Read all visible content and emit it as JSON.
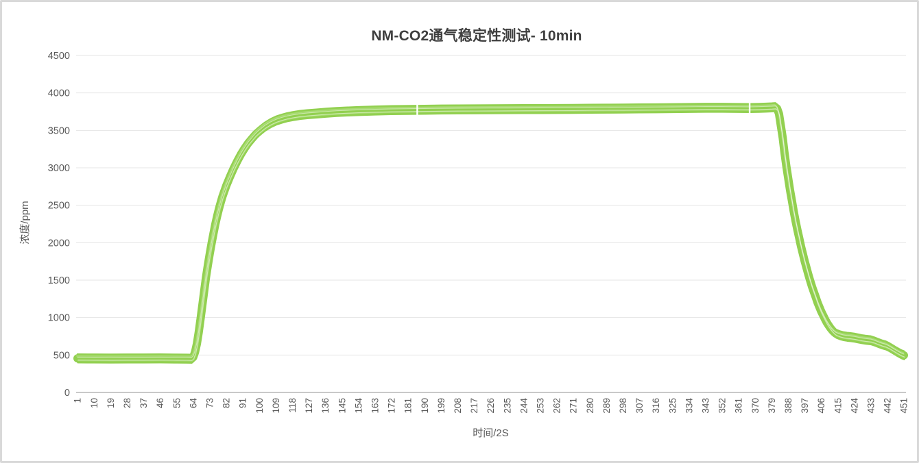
{
  "title": "NM-CO2通气稳定性测试- 10min",
  "colors": {
    "line": "#92D050",
    "line_light": "#A9DB74",
    "grid": "#E4E4E4",
    "axis_line": "#C9C9C9",
    "tick_text": "#595959",
    "title_text": "#3F3F3F",
    "frame_border": "#D9D9D9",
    "gap": "#FFFFFF"
  },
  "chart_data": {
    "type": "line",
    "title": "NM-CO2通气稳定性测试- 10min",
    "xlabel": "时间/2S",
    "ylabel": "浓度/ppm",
    "xlim": [
      1,
      451
    ],
    "ylim": [
      0,
      4500
    ],
    "grid": "horizontal",
    "legend": "none",
    "x_ticks": [
      1,
      10,
      19,
      28,
      37,
      46,
      55,
      64,
      73,
      82,
      91,
      100,
      109,
      118,
      127,
      136,
      145,
      154,
      163,
      172,
      181,
      190,
      199,
      208,
      217,
      226,
      235,
      244,
      253,
      262,
      271,
      280,
      289,
      298,
      307,
      316,
      325,
      334,
      343,
      352,
      361,
      370,
      379,
      388,
      397,
      406,
      415,
      424,
      433,
      442,
      451
    ],
    "y_ticks": [
      0,
      500,
      1000,
      1500,
      2000,
      2500,
      3000,
      3500,
      4000,
      4500
    ],
    "band_note": "thick band = many overlapped repeat runs of the same cycle",
    "gap_x": [
      186,
      367
    ],
    "series": [
      {
        "points": [
          [
            1,
            455
          ],
          [
            10,
            454
          ],
          [
            19,
            453
          ],
          [
            28,
            454
          ],
          [
            37,
            454
          ],
          [
            46,
            455
          ],
          [
            55,
            453
          ],
          [
            60,
            452
          ],
          [
            63,
            450
          ],
          [
            64,
            470
          ],
          [
            65,
            540
          ],
          [
            66,
            650
          ],
          [
            67,
            800
          ],
          [
            68,
            980
          ],
          [
            69,
            1170
          ],
          [
            70,
            1360
          ],
          [
            71,
            1540
          ],
          [
            72,
            1700
          ],
          [
            73,
            1850
          ],
          [
            74,
            1990
          ],
          [
            75,
            2120
          ],
          [
            76,
            2240
          ],
          [
            77,
            2350
          ],
          [
            78,
            2450
          ],
          [
            79,
            2540
          ],
          [
            80,
            2620
          ],
          [
            82,
            2760
          ],
          [
            84,
            2880
          ],
          [
            86,
            2990
          ],
          [
            88,
            3090
          ],
          [
            90,
            3180
          ],
          [
            92,
            3260
          ],
          [
            94,
            3330
          ],
          [
            96,
            3390
          ],
          [
            98,
            3445
          ],
          [
            100,
            3490
          ],
          [
            103,
            3550
          ],
          [
            106,
            3595
          ],
          [
            109,
            3630
          ],
          [
            112,
            3655
          ],
          [
            115,
            3675
          ],
          [
            118,
            3690
          ],
          [
            122,
            3705
          ],
          [
            126,
            3715
          ],
          [
            131,
            3725
          ],
          [
            136,
            3735
          ],
          [
            142,
            3745
          ],
          [
            148,
            3752
          ],
          [
            154,
            3758
          ],
          [
            163,
            3765
          ],
          [
            172,
            3770
          ],
          [
            181,
            3773
          ],
          [
            190,
            3776
          ],
          [
            199,
            3778
          ],
          [
            208,
            3780
          ],
          [
            217,
            3781
          ],
          [
            226,
            3782
          ],
          [
            235,
            3783
          ],
          [
            244,
            3784
          ],
          [
            253,
            3785
          ],
          [
            262,
            3786
          ],
          [
            271,
            3787
          ],
          [
            280,
            3789
          ],
          [
            289,
            3790
          ],
          [
            298,
            3791
          ],
          [
            307,
            3793
          ],
          [
            316,
            3795
          ],
          [
            325,
            3797
          ],
          [
            334,
            3799
          ],
          [
            343,
            3801
          ],
          [
            352,
            3801
          ],
          [
            361,
            3799
          ],
          [
            367,
            3798
          ],
          [
            372,
            3800
          ],
          [
            376,
            3804
          ],
          [
            379,
            3807
          ],
          [
            381,
            3810
          ],
          [
            382,
            3790
          ],
          [
            383,
            3720
          ],
          [
            384,
            3560
          ],
          [
            385,
            3400
          ],
          [
            386,
            3200
          ],
          [
            387,
            3020
          ],
          [
            388,
            2860
          ],
          [
            389,
            2700
          ],
          [
            390,
            2560
          ],
          [
            391,
            2420
          ],
          [
            392,
            2290
          ],
          [
            393,
            2170
          ],
          [
            394,
            2060
          ],
          [
            395,
            1950
          ],
          [
            396,
            1850
          ],
          [
            397,
            1750
          ],
          [
            398,
            1660
          ],
          [
            399,
            1570
          ],
          [
            400,
            1490
          ],
          [
            401,
            1410
          ],
          [
            402,
            1340
          ],
          [
            403,
            1270
          ],
          [
            404,
            1200
          ],
          [
            405,
            1140
          ],
          [
            406,
            1080
          ],
          [
            407,
            1030
          ],
          [
            408,
            980
          ],
          [
            409,
            935
          ],
          [
            410,
            895
          ],
          [
            411,
            860
          ],
          [
            412,
            830
          ],
          [
            413,
            805
          ],
          [
            414,
            785
          ],
          [
            416,
            765
          ],
          [
            418,
            752
          ],
          [
            420,
            744
          ],
          [
            422,
            738
          ],
          [
            424,
            732
          ],
          [
            426,
            722
          ],
          [
            428,
            712
          ],
          [
            430,
            704
          ],
          [
            433,
            696
          ],
          [
            435,
            680
          ],
          [
            437,
            660
          ],
          [
            439,
            642
          ],
          [
            441,
            628
          ],
          [
            443,
            605
          ],
          [
            445,
            575
          ],
          [
            447,
            545
          ],
          [
            449,
            518
          ],
          [
            450,
            506
          ],
          [
            451,
            497
          ]
        ]
      }
    ]
  }
}
